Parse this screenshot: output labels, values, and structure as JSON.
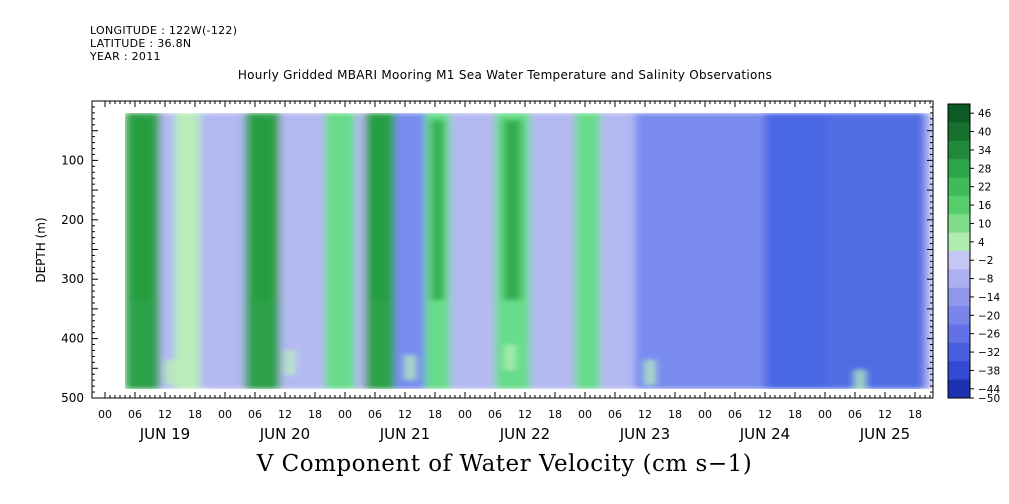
{
  "header": {
    "longitude": "LONGITUDE : 122W(-122)",
    "latitude": "LATITUDE : 36.8N",
    "year": "YEAR : 2011"
  },
  "chart_data": {
    "type": "heatmap",
    "title": "Hourly Gridded MBARI Mooring M1 Sea Water Temperature and Salinity Observations",
    "xlabel": "V Component of Water Velocity (cm s−1)",
    "ylabel": "DEPTH (m)",
    "ylim": [
      500,
      0
    ],
    "y_ticks": [
      100,
      200,
      300,
      400,
      500
    ],
    "x_hour_ticks": [
      "00",
      "06",
      "12",
      "18",
      "00",
      "06",
      "12",
      "18",
      "00",
      "06",
      "12",
      "18",
      "00",
      "06",
      "12",
      "18",
      "00",
      "06",
      "12",
      "18",
      "00",
      "06",
      "12",
      "18",
      "00",
      "06",
      "12",
      "18"
    ],
    "x_day_labels": [
      "JUN 19",
      "JUN 20",
      "JUN 21",
      "JUN 22",
      "JUN 23",
      "JUN 24",
      "JUN 25"
    ],
    "colorbar": {
      "levels": [
        46,
        40,
        34,
        28,
        22,
        16,
        10,
        4,
        -2,
        -8,
        -14,
        -20,
        -26,
        -32,
        -38,
        -44,
        -50
      ],
      "labels": [
        "46",
        "40",
        "34",
        "28",
        "22",
        "16",
        "10",
        "4",
        "−2",
        "−8",
        "−14",
        "−20",
        "−26",
        "−32",
        "−38",
        "−44",
        "−50"
      ]
    },
    "colors": {
      "strong_north": "#1f9e3a",
      "north": "#5ee07e",
      "weak_north": "#b9f2b4",
      "weak_south": "#b4b8f2",
      "south": "#6f82ee",
      "strong_south": "#3f5fe2"
    },
    "bands": [
      {
        "day": 19,
        "hour_start": 4,
        "hour_end": 11,
        "sign": "north",
        "strength": 0.9
      },
      {
        "day": 19,
        "hour_start": 11,
        "hour_end": 22,
        "sign": "south",
        "strength": 0.4
      },
      {
        "day": 19,
        "hour_start": 14,
        "hour_end": 19,
        "sign": "north",
        "strength": 0.5
      },
      {
        "day": 20,
        "hour_start": 4,
        "hour_end": 11,
        "sign": "north",
        "strength": 0.9
      },
      {
        "day": 20,
        "hour_start": 13,
        "hour_end": 20,
        "sign": "south",
        "strength": 0.5
      },
      {
        "day": 20,
        "hour_start": 20,
        "hour_end": 26,
        "sign": "north",
        "strength": 0.7
      },
      {
        "day": 21,
        "hour_start": 4,
        "hour_end": 10,
        "sign": "north",
        "strength": 1.0
      },
      {
        "day": 21,
        "hour_start": 10,
        "hour_end": 16,
        "sign": "south",
        "strength": 0.6
      },
      {
        "day": 21,
        "hour_start": 16,
        "hour_end": 21,
        "sign": "north",
        "strength": 0.8
      },
      {
        "day": 22,
        "hour_start": 0,
        "hour_end": 6,
        "sign": "south",
        "strength": 0.4
      },
      {
        "day": 22,
        "hour_start": 6,
        "hour_end": 13,
        "sign": "north",
        "strength": 0.8
      },
      {
        "day": 22,
        "hour_start": 15,
        "hour_end": 21,
        "sign": "south",
        "strength": 0.4
      },
      {
        "day": 22,
        "hour_start": 22,
        "hour_end": 27,
        "sign": "north",
        "strength": 0.7
      },
      {
        "day": 23,
        "hour_start": 10,
        "hour_end": 48,
        "sign": "south",
        "strength": 0.6
      },
      {
        "day": 24,
        "hour_start": 12,
        "hour_end": 44,
        "sign": "south",
        "strength": 0.9
      }
    ]
  }
}
